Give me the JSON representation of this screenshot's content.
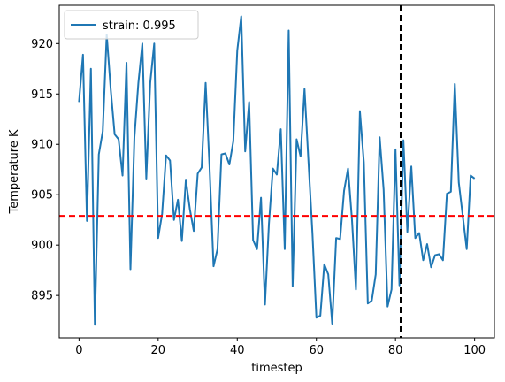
{
  "chart_data": {
    "type": "line",
    "title": "",
    "xlabel": "timestep",
    "ylabel": "Temperature K",
    "xlim": [
      -5,
      105
    ],
    "ylim": [
      890.8,
      923.8
    ],
    "xticks": [
      0,
      20,
      40,
      60,
      80,
      100
    ],
    "yticks": [
      895,
      900,
      905,
      910,
      915,
      920
    ],
    "grid": false,
    "legend_position": "top-left",
    "series": [
      {
        "name": "strain: 0.995",
        "color": "#1f77b4",
        "x": [
          0,
          1,
          2,
          3,
          4,
          5,
          6,
          7,
          8,
          9,
          10,
          11,
          12,
          13,
          14,
          15,
          16,
          17,
          18,
          19,
          20,
          21,
          22,
          23,
          24,
          25,
          26,
          27,
          28,
          29,
          30,
          31,
          32,
          33,
          34,
          35,
          36,
          37,
          38,
          39,
          40,
          41,
          42,
          43,
          44,
          45,
          46,
          47,
          48,
          49,
          50,
          51,
          52,
          53,
          54,
          55,
          56,
          57,
          58,
          59,
          60,
          61,
          62,
          63,
          64,
          65,
          66,
          67,
          68,
          69,
          70,
          71,
          72,
          73,
          74,
          75,
          76,
          77,
          78,
          79,
          80,
          81,
          82,
          83,
          84,
          85,
          86,
          87,
          88,
          89,
          90,
          91,
          92,
          93,
          94,
          95,
          96,
          97,
          98,
          99,
          100
        ],
        "values": [
          914.2,
          918.9,
          902.4,
          917.5,
          892.1,
          909.0,
          911.3,
          920.9,
          915.5,
          911.0,
          910.5,
          906.9,
          918.1,
          897.6,
          910.7,
          916.1,
          920.0,
          906.6,
          916.1,
          920.0,
          900.7,
          903.1,
          908.9,
          908.4,
          902.5,
          904.5,
          900.4,
          906.5,
          903.6,
          901.4,
          907.1,
          907.7,
          916.1,
          907.7,
          897.9,
          899.6,
          909.0,
          909.1,
          908.0,
          910.3,
          919.3,
          922.7,
          909.3,
          914.2,
          900.5,
          899.6,
          904.7,
          894.1,
          902.1,
          907.6,
          907.0,
          911.5,
          899.6,
          921.3,
          895.9,
          910.5,
          908.8,
          915.5,
          908.3,
          901.2,
          892.8,
          893.0,
          898.1,
          897.1,
          892.2,
          900.7,
          900.6,
          905.4,
          907.6,
          902.5,
          895.6,
          913.3,
          908.2,
          894.2,
          894.5,
          897.1,
          910.7,
          905.5,
          893.9,
          895.6,
          909.5,
          896.0,
          910.4,
          901.3,
          907.8,
          900.7,
          901.2,
          898.5,
          900.1,
          897.8,
          899.0,
          899.1,
          898.5,
          905.1,
          905.3,
          916.0,
          906.2,
          902.9,
          899.6,
          906.9,
          906.6
        ]
      }
    ],
    "reference_lines": [
      {
        "orientation": "horizontal",
        "value": 902.9,
        "color": "#ff0000",
        "style": "dashed"
      },
      {
        "orientation": "vertical",
        "value": 81.3,
        "color": "#000000",
        "style": "dashed"
      }
    ]
  }
}
